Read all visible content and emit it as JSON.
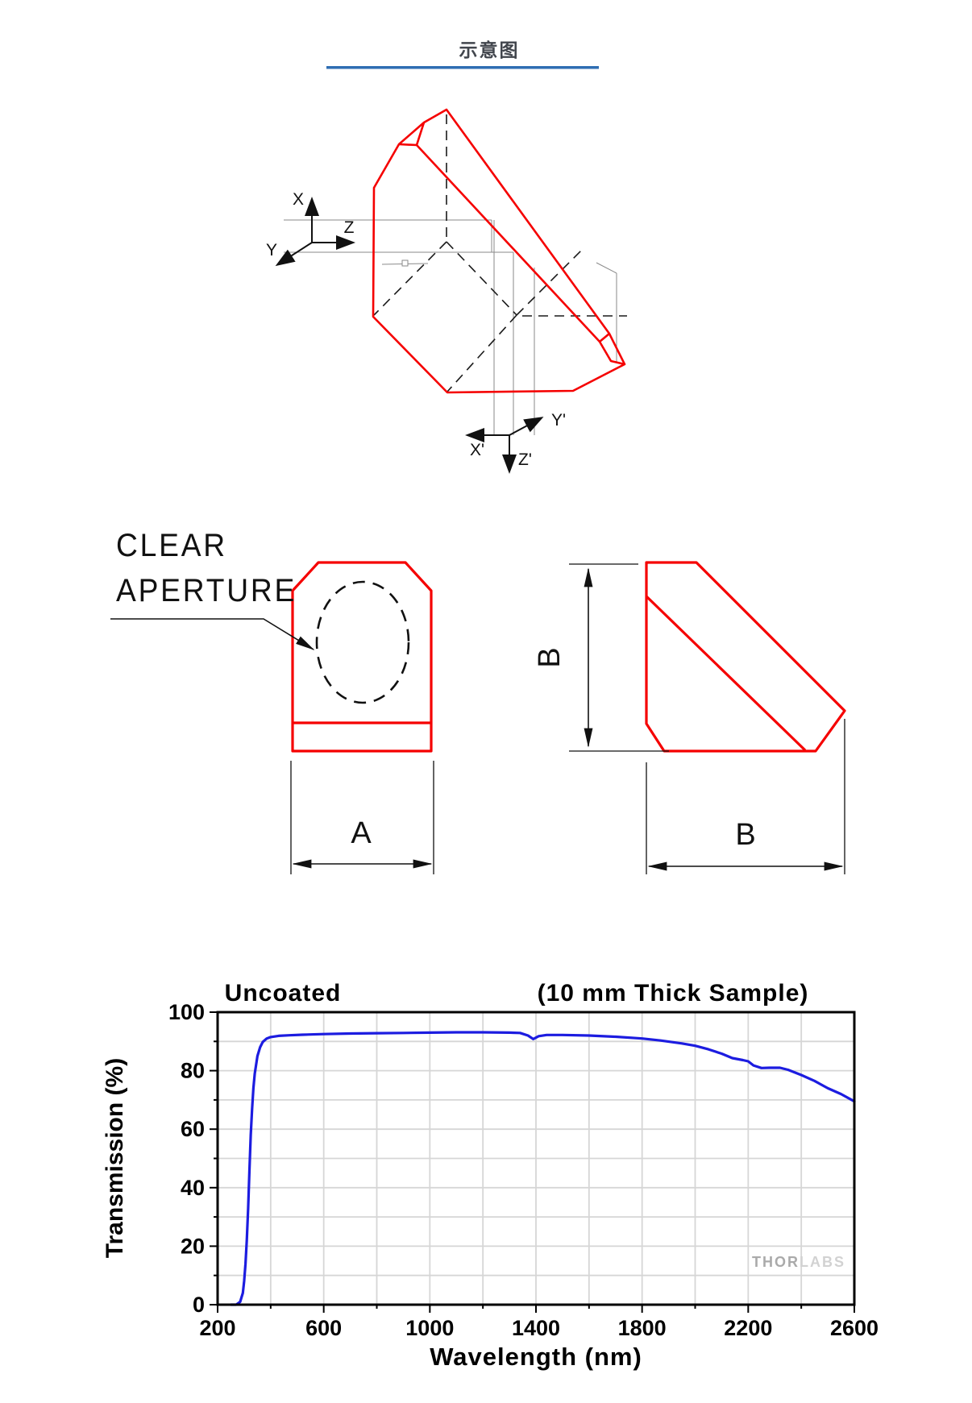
{
  "page": {
    "title": "示意图"
  },
  "colors": {
    "red_outline": "#f50000",
    "header_underline": "#2f6eb3",
    "curve_blue": "#1c1ce0",
    "grid_gray": "#d6d6d6",
    "watermark_gray": "#aaaaaa"
  },
  "prism_diagram": {
    "axes": {
      "x": "X",
      "y": "Y",
      "z": "Z",
      "x2": "X'",
      "y2": "Y'",
      "z2": "Z'"
    }
  },
  "orthographic_views": {
    "clear_aperture_line1": "CLEAR",
    "clear_aperture_line2": "APERTURE",
    "dim_width": "A",
    "dim_height": "B",
    "dim_depth": "B"
  },
  "chart_data": {
    "type": "line",
    "title_left": "Uncoated",
    "title_right": "(10 mm Thick Sample)",
    "xlabel": "Wavelength (nm)",
    "ylabel": "Transmission (%)",
    "xlim": [
      200,
      2600
    ],
    "ylim": [
      0,
      100
    ],
    "xticks": [
      200,
      600,
      1000,
      1400,
      1800,
      2200,
      2600
    ],
    "yticks": [
      0,
      20,
      40,
      60,
      80,
      100
    ],
    "x_minor_step": 200,
    "y_minor_step": 10,
    "grid": true,
    "legend": "none",
    "watermark_bold": "THOR",
    "watermark_light": "LABS",
    "series": [
      {
        "name": "Uncoated (10 mm Thick Sample)",
        "color": "#1c1ce0",
        "points": [
          [
            250,
            0
          ],
          [
            270,
            0
          ],
          [
            285,
            1
          ],
          [
            295,
            4
          ],
          [
            300,
            8
          ],
          [
            305,
            14
          ],
          [
            310,
            22
          ],
          [
            315,
            33
          ],
          [
            320,
            46
          ],
          [
            325,
            58
          ],
          [
            330,
            67
          ],
          [
            335,
            74
          ],
          [
            340,
            79
          ],
          [
            350,
            85
          ],
          [
            360,
            88
          ],
          [
            370,
            89.8
          ],
          [
            385,
            91
          ],
          [
            400,
            91.5
          ],
          [
            430,
            91.9
          ],
          [
            470,
            92.1
          ],
          [
            520,
            92.3
          ],
          [
            600,
            92.5
          ],
          [
            700,
            92.7
          ],
          [
            800,
            92.8
          ],
          [
            900,
            92.9
          ],
          [
            1000,
            93
          ],
          [
            1100,
            93.1
          ],
          [
            1200,
            93.1
          ],
          [
            1300,
            93
          ],
          [
            1340,
            92.9
          ],
          [
            1370,
            92
          ],
          [
            1390,
            90.8
          ],
          [
            1410,
            91.8
          ],
          [
            1440,
            92.2
          ],
          [
            1500,
            92.2
          ],
          [
            1600,
            92
          ],
          [
            1700,
            91.6
          ],
          [
            1800,
            91
          ],
          [
            1870,
            90.3
          ],
          [
            1950,
            89.3
          ],
          [
            2000,
            88.5
          ],
          [
            2050,
            87.3
          ],
          [
            2100,
            85.8
          ],
          [
            2140,
            84.3
          ],
          [
            2180,
            83.6
          ],
          [
            2200,
            83.2
          ],
          [
            2220,
            81.8
          ],
          [
            2250,
            80.9
          ],
          [
            2280,
            81
          ],
          [
            2320,
            81
          ],
          [
            2350,
            80.3
          ],
          [
            2400,
            78.5
          ],
          [
            2450,
            76.5
          ],
          [
            2500,
            74
          ],
          [
            2550,
            72
          ],
          [
            2600,
            69.5
          ]
        ]
      }
    ]
  }
}
